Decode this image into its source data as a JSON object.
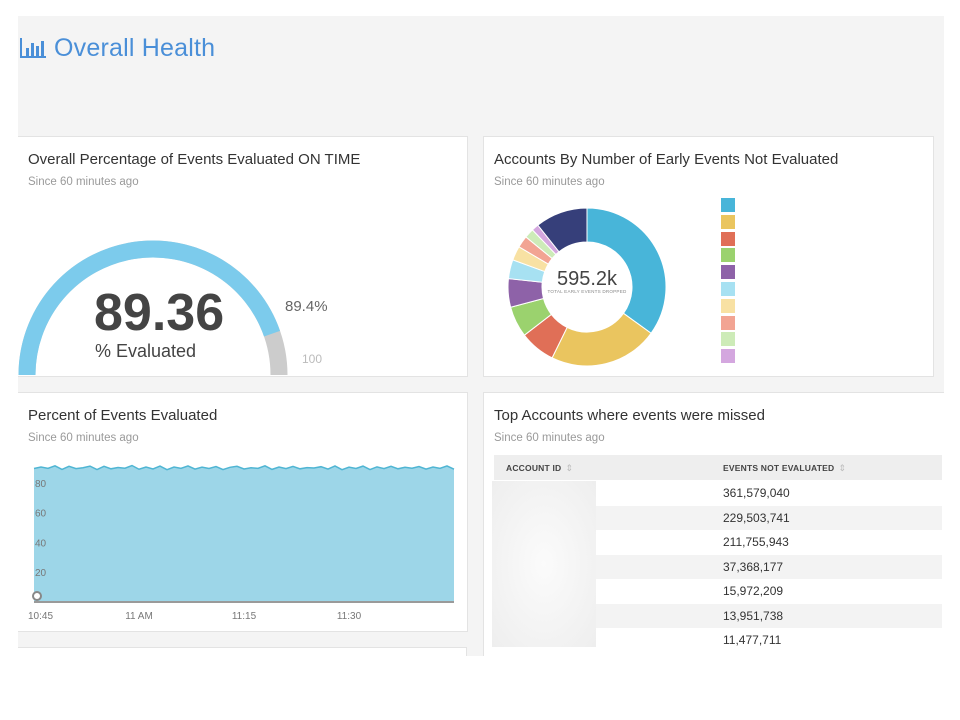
{
  "header": {
    "title": "Overall Health",
    "icon": "bar-chart-icon",
    "accent_color": "#4a8fd8"
  },
  "gauge_card": {
    "title": "Overall Percentage of Events Evaluated ON TIME",
    "subtitle": "Since 60 minutes ago",
    "value": "89.36",
    "caption": "% Evaluated",
    "pct_label": "89.4%",
    "max_label": "100",
    "fraction": 0.8936,
    "fill_color": "#7ccbec",
    "rest_color": "#cccccc"
  },
  "donut_card": {
    "title": "Accounts By Number of Early Events Not Evaluated",
    "subtitle": "Since 60 minutes ago",
    "center_value": "595.2k",
    "center_label": "TOTAL EARLY EVENTS DROPPED",
    "legend_colors": [
      "#48b5d9",
      "#eac55f",
      "#e06f57",
      "#9bd26e",
      "#8e62a8",
      "#a7e1f2",
      "#f8e1a3",
      "#f2a493",
      "#cdebb8",
      "#d4a7df"
    ]
  },
  "area_card": {
    "title": "Percent of Events Evaluated",
    "subtitle": "Since 60 minutes ago",
    "fill_color": "#9dd6e8",
    "line_color": "#4fb5d3"
  },
  "table_card": {
    "title": "Top Accounts where events were missed",
    "subtitle": "Since 60 minutes ago",
    "columns": [
      "ACCOUNT ID",
      "EVENTS NOT EVALUATED"
    ],
    "rows": [
      {
        "events": "361,579,040"
      },
      {
        "events": "229,503,741"
      },
      {
        "events": "211,755,943"
      },
      {
        "events": "37,368,177"
      },
      {
        "events": "15,972,209"
      },
      {
        "events": "13,951,738"
      },
      {
        "events": "11,477,711"
      }
    ]
  },
  "chart_data": [
    {
      "type": "pie",
      "title": "Accounts By Number of Early Events Not Evaluated",
      "total_label": "595.2k",
      "slices": [
        {
          "value": 0.36,
          "color": "#48b5d9"
        },
        {
          "value": 0.23,
          "color": "#eac55f"
        },
        {
          "value": 0.075,
          "color": "#e06f57"
        },
        {
          "value": 0.065,
          "color": "#9bd26e"
        },
        {
          "value": 0.06,
          "color": "#8e62a8"
        },
        {
          "value": 0.04,
          "color": "#a7e1f2"
        },
        {
          "value": 0.03,
          "color": "#f8e1a3"
        },
        {
          "value": 0.025,
          "color": "#f2a493"
        },
        {
          "value": 0.02,
          "color": "#cdebb8"
        },
        {
          "value": 0.015,
          "color": "#d4a7df"
        },
        {
          "value": 0.11,
          "color": "#363f7a"
        }
      ]
    },
    {
      "type": "area",
      "title": "Percent of Events Evaluated",
      "x_ticks": [
        "10:45",
        "11 AM",
        "11:15",
        "11:30"
      ],
      "y_ticks": [
        20,
        40,
        60,
        80
      ],
      "ylim": [
        0,
        100
      ],
      "x_start_minute": 45,
      "x_end_minute": 105,
      "values": [
        89.6,
        90.6,
        89.7,
        91.4,
        89.0,
        91.1,
        89.5,
        90.1,
        91.2,
        88.9,
        91.1,
        89.4,
        90.3,
        89.8,
        91.6,
        89.1,
        90.6,
        89.3,
        91.2,
        88.8,
        90.6,
        89.7,
        91.3,
        89.2,
        90.5,
        89.6,
        90.9,
        88.9,
        90.4,
        91.1,
        89.3,
        90.1,
        89.7,
        91.4,
        89.0,
        90.6,
        89.5,
        91.0,
        89.4,
        90.2,
        89.9,
        90.8,
        89.2,
        91.3,
        88.8,
        90.5,
        89.6,
        91.2,
        88.9,
        90.7,
        89.5,
        91.1,
        89.4,
        90.4,
        89.8,
        90.9,
        89.2,
        90.6,
        89.7,
        91.3,
        89.1
      ]
    }
  ]
}
